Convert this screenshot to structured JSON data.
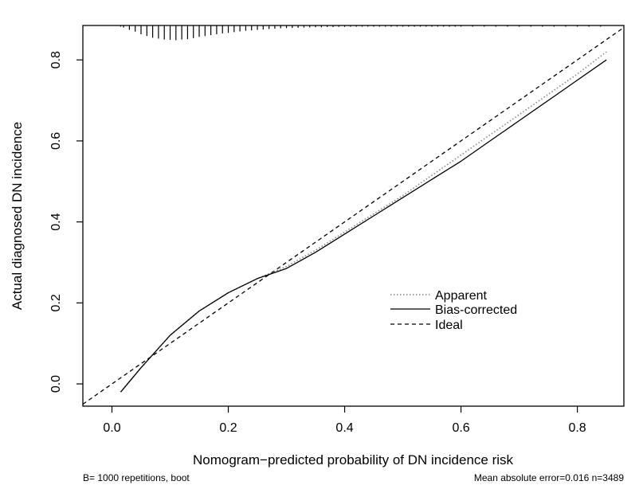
{
  "chart_data": {
    "type": "line",
    "xlabel": "Nomogram−predicted probability of DN incidence risk",
    "ylabel": "Actual diagnosed DN incidence",
    "xlim": [
      -0.05,
      0.88
    ],
    "ylim": [
      -0.055,
      0.885
    ],
    "xticks": [
      0.0,
      0.2,
      0.4,
      0.6,
      0.8
    ],
    "xtick_labels": [
      "0.0",
      "0.2",
      "0.4",
      "0.6",
      "0.8"
    ],
    "yticks": [
      0.0,
      0.2,
      0.4,
      0.6,
      0.8
    ],
    "ytick_labels": [
      "0.0",
      "0.2",
      "0.4",
      "0.6",
      "0.8"
    ],
    "grid": false,
    "legend_position": "center-right",
    "series": [
      {
        "name": "Apparent",
        "style": "dotted",
        "color": "#888888",
        "x": [
          0.015,
          0.05,
          0.1,
          0.15,
          0.2,
          0.25,
          0.3,
          0.35,
          0.4,
          0.45,
          0.5,
          0.55,
          0.6,
          0.65,
          0.7,
          0.75,
          0.8,
          0.85
        ],
        "y": [
          -0.02,
          0.04,
          0.12,
          0.18,
          0.225,
          0.26,
          0.29,
          0.33,
          0.375,
          0.42,
          0.465,
          0.515,
          0.565,
          0.615,
          0.665,
          0.715,
          0.765,
          0.82
        ]
      },
      {
        "name": "Bias-corrected",
        "style": "solid",
        "color": "#000000",
        "x": [
          0.015,
          0.05,
          0.1,
          0.15,
          0.2,
          0.25,
          0.3,
          0.35,
          0.4,
          0.45,
          0.5,
          0.55,
          0.6,
          0.65,
          0.7,
          0.75,
          0.8,
          0.85
        ],
        "y": [
          -0.02,
          0.04,
          0.12,
          0.18,
          0.225,
          0.26,
          0.285,
          0.325,
          0.37,
          0.415,
          0.46,
          0.505,
          0.55,
          0.6,
          0.65,
          0.7,
          0.75,
          0.8
        ]
      },
      {
        "name": "Ideal",
        "style": "dashed",
        "color": "#000000",
        "x": [
          -0.05,
          0.88
        ],
        "y": [
          -0.05,
          0.88
        ]
      }
    ],
    "rug": {
      "x": [
        0.015,
        0.02,
        0.03,
        0.04,
        0.05,
        0.06,
        0.07,
        0.08,
        0.09,
        0.1,
        0.11,
        0.12,
        0.13,
        0.14,
        0.15,
        0.16,
        0.17,
        0.18,
        0.19,
        0.2,
        0.21,
        0.22,
        0.23,
        0.24,
        0.25,
        0.26,
        0.27,
        0.28,
        0.29,
        0.3,
        0.31,
        0.32,
        0.33,
        0.34,
        0.35,
        0.36,
        0.37,
        0.38,
        0.39,
        0.4,
        0.41,
        0.42,
        0.43,
        0.44,
        0.45,
        0.46,
        0.47,
        0.48,
        0.49,
        0.5,
        0.51,
        0.52,
        0.53,
        0.54,
        0.55,
        0.56,
        0.57,
        0.58,
        0.59,
        0.6,
        0.62,
        0.64,
        0.66,
        0.68,
        0.7,
        0.72,
        0.74,
        0.76,
        0.78,
        0.8,
        0.82,
        0.84
      ],
      "freq": [
        0.06,
        0.12,
        0.25,
        0.35,
        0.5,
        0.6,
        0.7,
        0.75,
        0.8,
        0.82,
        0.84,
        0.8,
        0.78,
        0.72,
        0.65,
        0.6,
        0.55,
        0.5,
        0.45,
        0.42,
        0.38,
        0.34,
        0.3,
        0.28,
        0.25,
        0.23,
        0.2,
        0.18,
        0.16,
        0.15,
        0.14,
        0.13,
        0.12,
        0.11,
        0.1,
        0.1,
        0.09,
        0.09,
        0.08,
        0.08,
        0.07,
        0.07,
        0.07,
        0.06,
        0.06,
        0.06,
        0.05,
        0.05,
        0.05,
        0.05,
        0.05,
        0.04,
        0.04,
        0.04,
        0.04,
        0.04,
        0.04,
        0.03,
        0.03,
        0.03,
        0.03,
        0.03,
        0.03,
        0.03,
        0.03,
        0.02,
        0.02,
        0.02,
        0.02,
        0.02,
        0.02,
        0.02
      ]
    },
    "footer_left": "B= 1000 repetitions, boot",
    "footer_right": "Mean absolute error=0.016 n=3489"
  }
}
